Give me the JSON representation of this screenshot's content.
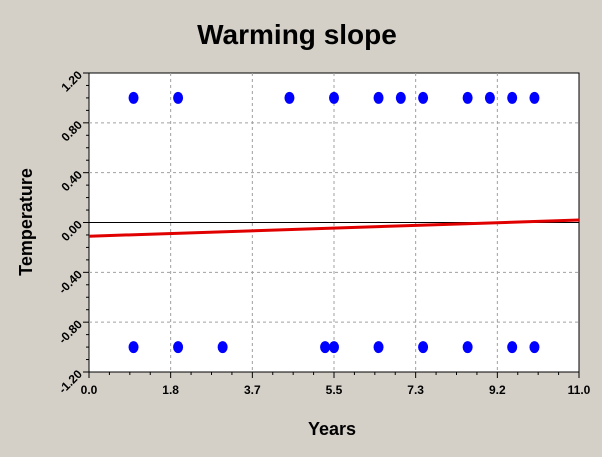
{
  "chart_data": {
    "type": "scatter",
    "title": "Warming slope",
    "xlabel": "Years",
    "ylabel": "Temperature",
    "xlim": [
      0.0,
      11.0
    ],
    "ylim": [
      -1.2,
      1.2
    ],
    "x_ticks": [
      "0.0",
      "1.8",
      "3.7",
      "5.5",
      "7.3",
      "9.2",
      "11.0"
    ],
    "x_tick_values": [
      0.0,
      1.833,
      3.667,
      5.5,
      7.333,
      9.167,
      11.0
    ],
    "y_ticks": [
      "1.20",
      "0.80",
      "0.40",
      "0.00",
      "-0.40",
      "-0.80",
      "-1.20"
    ],
    "y_tick_values": [
      1.2,
      0.8,
      0.4,
      0.0,
      -0.4,
      -0.8,
      -1.2
    ],
    "grid": true,
    "zero_line": true,
    "series": [
      {
        "kind": "scatter",
        "color": "#0000ff",
        "points": [
          [
            1.0,
            1.0
          ],
          [
            2.0,
            1.0
          ],
          [
            4.5,
            1.0
          ],
          [
            5.5,
            1.0
          ],
          [
            6.5,
            1.0
          ],
          [
            7.0,
            1.0
          ],
          [
            7.5,
            1.0
          ],
          [
            8.5,
            1.0
          ],
          [
            9.0,
            1.0
          ],
          [
            9.5,
            1.0
          ],
          [
            10.0,
            1.0
          ],
          [
            1.0,
            -1.0
          ],
          [
            2.0,
            -1.0
          ],
          [
            3.0,
            -1.0
          ],
          [
            5.3,
            -1.0
          ],
          [
            5.5,
            -1.0
          ],
          [
            6.5,
            -1.0
          ],
          [
            7.5,
            -1.0
          ],
          [
            8.5,
            -1.0
          ],
          [
            9.5,
            -1.0
          ],
          [
            10.0,
            -1.0
          ]
        ]
      },
      {
        "kind": "line",
        "color": "#e00000",
        "points": [
          [
            0.0,
            -0.11
          ],
          [
            11.0,
            0.02
          ]
        ]
      }
    ]
  }
}
